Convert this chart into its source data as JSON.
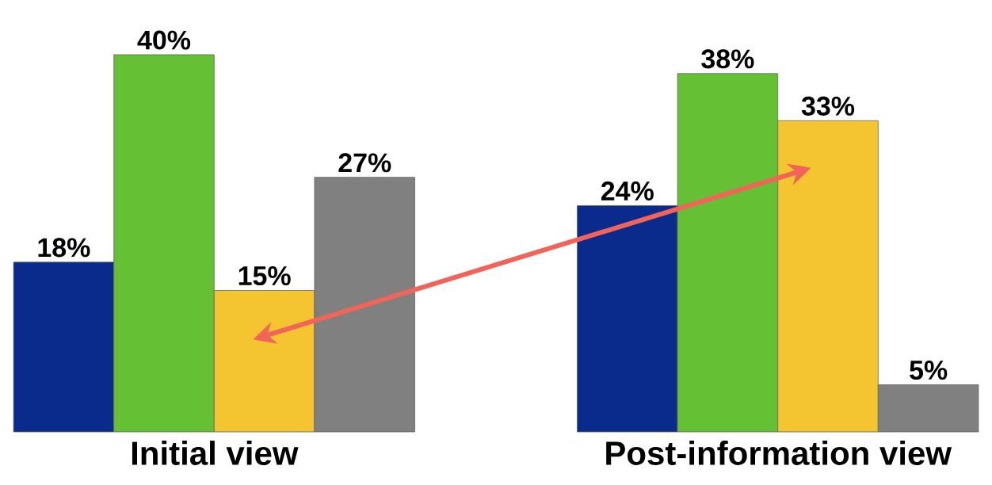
{
  "chart_data": {
    "type": "bar",
    "categories": [
      "Initial view",
      "Post-information view"
    ],
    "series": [
      {
        "color": "#0a2a8c",
        "values": [
          18,
          24
        ],
        "value_labels": [
          "18%",
          "24%"
        ]
      },
      {
        "color": "#66c033",
        "values": [
          40,
          38
        ],
        "value_labels": [
          "40%",
          "38%"
        ]
      },
      {
        "color": "#f5c531",
        "values": [
          15,
          33
        ],
        "value_labels": [
          "15%",
          "33%"
        ]
      },
      {
        "color": "#808080",
        "values": [
          27,
          5
        ],
        "value_labels": [
          "27%",
          "5%"
        ]
      }
    ]
  }
}
